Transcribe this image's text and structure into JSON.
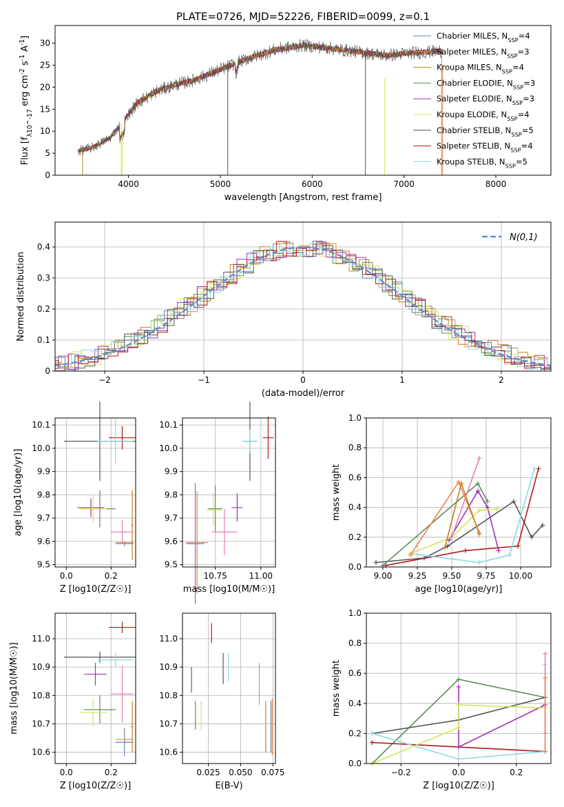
{
  "figure": {
    "title": "PLATE=0726, MJD=52226, FIBERID=0099, z=0.1"
  },
  "colors": {
    "chab_miles": "#6b7fb0",
    "salp_miles": "#e8864a",
    "krou_miles": "#c67f1a",
    "chab_elodie": "#5d8a5d",
    "salp_elodie": "#9e31b8",
    "krou_elodie": "#d4e35a",
    "chab_stelib": "#555555",
    "salp_stelib": "#b01717",
    "krou_stelib": "#8dd8e0",
    "pink": "#e77fb8",
    "gauss": "#5b8fd6"
  },
  "chart_data": [
    {
      "id": "spectrum",
      "type": "line",
      "xlabel": "wavelength [Angstrom, rest frame]",
      "ylabel": "Flux [f_λ10^-17 erg cm^-2 s^-1 A^-1]",
      "xlim": [
        3200,
        8600
      ],
      "ylim": [
        0,
        34
      ],
      "xticks": [
        4000,
        5000,
        6000,
        7000,
        8000
      ],
      "yticks": [
        0,
        5,
        10,
        15,
        20,
        25,
        30
      ],
      "legend_position": "right",
      "continuum": {
        "x": [
          3450,
          3600,
          3800,
          3950,
          4100,
          4300,
          4500,
          4700,
          5000,
          5300,
          5600,
          5900,
          6200,
          6500,
          6800,
          7100,
          7400
        ],
        "y": [
          5.5,
          6.2,
          8.5,
          12.5,
          16.5,
          19.0,
          20.5,
          21.5,
          24.0,
          26.5,
          28.5,
          29.5,
          28.8,
          28.0,
          27.2,
          27.8,
          28.2
        ]
      },
      "series": [
        {
          "name": "Chabrier MILES, N_SSP=4",
          "color_key": "chab_miles"
        },
        {
          "name": "Salpeter MILES, N_SSP=3",
          "color_key": "salp_miles"
        },
        {
          "name": "Kroupa MILES, N_SSP=4",
          "color_key": "krou_miles"
        },
        {
          "name": "Chabrier ELODIE, N_SSP=3",
          "color_key": "chab_elodie"
        },
        {
          "name": "Salpeter ELODIE, N_SSP=3",
          "color_key": "salp_elodie"
        },
        {
          "name": "Kroupa ELODIE, N_SSP=4",
          "color_key": "krou_elodie"
        },
        {
          "name": "Chabrier STELIB, N_SSP=5",
          "color_key": "chab_stelib"
        },
        {
          "name": "Salpeter STELIB, N_SSP=4",
          "color_key": "salp_stelib"
        },
        {
          "name": "Kroupa STELIB, N_SSP=5",
          "color_key": "krou_stelib"
        }
      ]
    },
    {
      "id": "residuals",
      "type": "line",
      "xlabel": "(data-model)/error",
      "ylabel": "Normed distribution",
      "xlim": [
        -2.5,
        2.5
      ],
      "ylim": [
        0,
        0.48
      ],
      "xticks": [
        -2,
        -1,
        0,
        1,
        2
      ],
      "yticks": [
        0.0,
        0.1,
        0.2,
        0.3,
        0.4
      ],
      "grid": true,
      "legend_position": "top-right",
      "gauss_label": "N(0,1)"
    },
    {
      "id": "age_vs_Z",
      "type": "scatter",
      "xlabel": "Z [log10(Z/Z☉)]",
      "ylabel": "age  [log10(age/yr)]",
      "xlim": [
        -0.05,
        0.31
      ],
      "ylim": [
        9.49,
        10.13
      ],
      "xticks": [
        0.0,
        0.2
      ],
      "yticks": [
        9.5,
        9.6,
        9.7,
        9.8,
        9.9,
        10.0,
        10.1
      ],
      "grid": true,
      "points": [
        {
          "color_key": "chab_miles",
          "x": 0.26,
          "xerr": 0.04,
          "y": 9.59,
          "yerr": 0.01
        },
        {
          "color_key": "salp_miles",
          "x": 0.26,
          "xerr": 0.04,
          "y": 9.595,
          "yerr": 0.005
        },
        {
          "color_key": "krou_miles",
          "x": 0.295,
          "xerr": 0.005,
          "y": 9.67,
          "yerr": 0.15
        },
        {
          "color_key": "chab_elodie",
          "x": 0.15,
          "xerr": 0.07,
          "y": 9.74,
          "yerr": 0.08
        },
        {
          "color_key": "salp_elodie",
          "x": 0.11,
          "xerr": 0.06,
          "y": 9.745,
          "yerr": 0.04
        },
        {
          "color_key": "krou_elodie",
          "x": 0.12,
          "xerr": 0.06,
          "y": 9.74,
          "yerr": 0.06
        },
        {
          "color_key": "chab_stelib",
          "x": 0.15,
          "xerr": 0.16,
          "y": 10.03,
          "yerr": 0.17
        },
        {
          "color_key": "salp_stelib",
          "x": 0.25,
          "xerr": 0.06,
          "y": 10.045,
          "yerr": 0.05
        },
        {
          "color_key": "krou_stelib",
          "x": 0.22,
          "xerr": 0.08,
          "y": 10.03,
          "yerr": 0.1
        },
        {
          "color_key": "pink",
          "x": 0.25,
          "xerr": 0.05,
          "y": 9.64,
          "yerr": 0.05
        }
      ]
    },
    {
      "id": "age_vs_mass",
      "type": "scatter",
      "xlabel": "mass [log10(M/M☉)]",
      "ylabel": "",
      "xlim": [
        10.57,
        11.08
      ],
      "ylim": [
        9.49,
        10.13
      ],
      "xticks": [
        10.75,
        11.0
      ],
      "yticks": [
        9.5,
        9.6,
        9.7,
        9.8,
        9.9,
        10.0,
        10.1
      ],
      "grid": true,
      "points": [
        {
          "color_key": "chab_miles",
          "x": 10.64,
          "xerr": 0.05,
          "y": 9.59,
          "yerr": 0.26
        },
        {
          "color_key": "salp_miles",
          "x": 10.65,
          "xerr": 0.06,
          "y": 9.595,
          "yerr": 0.22
        },
        {
          "color_key": "chab_elodie",
          "x": 10.75,
          "xerr": 0.04,
          "y": 9.74,
          "yerr": 0.1
        },
        {
          "color_key": "salp_elodie",
          "x": 10.87,
          "xerr": 0.03,
          "y": 9.745,
          "yerr": 0.06
        },
        {
          "color_key": "krou_elodie",
          "x": 10.74,
          "xerr": 0.04,
          "y": 9.735,
          "yerr": 0.07
        },
        {
          "color_key": "chab_stelib",
          "x": 10.94,
          "xerr": 0.04,
          "y": 10.03,
          "yerr": 0.17
        },
        {
          "color_key": "salp_stelib",
          "x": 11.04,
          "xerr": 0.03,
          "y": 10.045,
          "yerr": 0.09
        },
        {
          "color_key": "krou_stelib",
          "x": 10.94,
          "xerr": 0.04,
          "y": 10.03,
          "yerr": 0.05
        },
        {
          "color_key": "pink",
          "x": 10.8,
          "xerr": 0.07,
          "y": 9.64,
          "yerr": 0.1
        }
      ]
    },
    {
      "id": "mass_weight_vs_age",
      "type": "line",
      "xlabel": "age  [log10(age/yr)]",
      "ylabel": "mass weight",
      "xlim": [
        8.88,
        10.22
      ],
      "ylim": [
        0.0,
        1.0
      ],
      "xticks": [
        9.0,
        9.25,
        9.5,
        9.75,
        10.0
      ],
      "yticks": [
        0.0,
        0.2,
        0.4,
        0.6,
        0.8,
        1.0
      ],
      "grid": true,
      "series": [
        {
          "color_key": "chab_stelib",
          "x": [
            8.95,
            9.3,
            9.47,
            9.95,
            10.08,
            10.16
          ],
          "y": [
            0.03,
            0.06,
            0.14,
            0.44,
            0.2,
            0.28
          ]
        },
        {
          "color_key": "salp_stelib",
          "x": [
            9.02,
            9.6,
            9.98,
            10.13
          ],
          "y": [
            0.01,
            0.11,
            0.14,
            0.66
          ]
        },
        {
          "color_key": "krou_stelib",
          "x": [
            9.2,
            9.7,
            9.92,
            10.1
          ],
          "y": [
            0.09,
            0.03,
            0.08,
            0.66
          ]
        },
        {
          "color_key": "chab_elodie",
          "x": [
            9.0,
            9.69,
            9.76
          ],
          "y": [
            0.01,
            0.56,
            0.44
          ]
        },
        {
          "color_key": "salp_elodie",
          "x": [
            9.48,
            9.69,
            9.76,
            9.84
          ],
          "y": [
            0.18,
            0.51,
            0.4,
            0.11
          ]
        },
        {
          "color_key": "krou_elodie",
          "x": [
            9.2,
            9.5,
            9.7,
            9.83
          ],
          "y": [
            0.09,
            0.2,
            0.38,
            0.39
          ]
        },
        {
          "color_key": "salp_miles",
          "x": [
            9.2,
            9.55,
            9.7
          ],
          "y": [
            0.08,
            0.57,
            0.23
          ]
        },
        {
          "color_key": "krou_miles",
          "x": [
            9.45,
            9.57,
            9.7
          ],
          "y": [
            0.13,
            0.56,
            0.22
          ]
        },
        {
          "color_key": "pink",
          "x": [
            9.5,
            9.7
          ],
          "y": [
            0.2,
            0.73
          ]
        }
      ]
    },
    {
      "id": "mass_vs_Z",
      "type": "scatter",
      "xlabel": "Z [log10(Z/Z☉)]",
      "ylabel": "mass [log10(M/M☉)]",
      "xlim": [
        -0.05,
        0.31
      ],
      "ylim": [
        10.56,
        11.09
      ],
      "xticks": [
        0.0,
        0.2
      ],
      "yticks": [
        10.6,
        10.7,
        10.8,
        10.9,
        11.0
      ],
      "grid": true,
      "points": [
        {
          "color_key": "chab_miles",
          "x": 0.26,
          "xerr": 0.04,
          "y": 10.635,
          "yerr": 0.05
        },
        {
          "color_key": "salp_miles",
          "x": 0.26,
          "xerr": 0.04,
          "y": 10.645,
          "yerr": 0.005
        },
        {
          "color_key": "krou_miles",
          "x": 0.295,
          "xerr": 0.005,
          "y": 10.69,
          "yerr": 0.09
        },
        {
          "color_key": "chab_elodie",
          "x": 0.15,
          "xerr": 0.07,
          "y": 10.75,
          "yerr": 0.05
        },
        {
          "color_key": "salp_elodie",
          "x": 0.13,
          "xerr": 0.05,
          "y": 10.875,
          "yerr": 0.04
        },
        {
          "color_key": "krou_elodie",
          "x": 0.12,
          "xerr": 0.06,
          "y": 10.74,
          "yerr": 0.05
        },
        {
          "color_key": "chab_stelib",
          "x": 0.15,
          "xerr": 0.16,
          "y": 10.935,
          "yerr": 0.02
        },
        {
          "color_key": "salp_stelib",
          "x": 0.25,
          "xerr": 0.06,
          "y": 11.04,
          "yerr": 0.02
        },
        {
          "color_key": "krou_stelib",
          "x": 0.22,
          "xerr": 0.08,
          "y": 10.925,
          "yerr": 0.025
        },
        {
          "color_key": "pink",
          "x": 0.25,
          "xerr": 0.05,
          "y": 10.805,
          "yerr": 0.1
        }
      ]
    },
    {
      "id": "mass_vs_EBV",
      "type": "scatter",
      "xlabel": "E(B-V)",
      "ylabel": "",
      "xlim": [
        0.005,
        0.077
      ],
      "ylim": [
        10.56,
        11.09
      ],
      "xticks": [
        0.025,
        0.05,
        0.075
      ],
      "yticks": [
        10.6,
        10.7,
        10.8,
        10.9,
        11.0
      ],
      "grid": true,
      "points": [
        {
          "color_key": "chab_miles",
          "x": 0.0735,
          "y": 10.69,
          "yerr": 0.09
        },
        {
          "color_key": "salp_miles",
          "x": 0.0745,
          "y": 10.69,
          "yerr": 0.1
        },
        {
          "color_key": "krou_miles",
          "x": 0.0695,
          "y": 10.69,
          "yerr": 0.09
        },
        {
          "color_key": "chab_elodie",
          "x": 0.015,
          "y": 10.73,
          "yerr": 0.05
        },
        {
          "color_key": "salp_elodie",
          "x": 0.012,
          "y": 10.855,
          "yerr": 0.045
        },
        {
          "color_key": "krou_elodie",
          "x": 0.0195,
          "y": 10.73,
          "yerr": 0.05
        },
        {
          "color_key": "chab_stelib",
          "x": 0.0365,
          "y": 10.895,
          "yerr": 0.055
        },
        {
          "color_key": "salp_stelib",
          "x": 0.0275,
          "y": 11.02,
          "yerr": 0.035
        },
        {
          "color_key": "krou_stelib",
          "x": 0.0405,
          "y": 10.9,
          "yerr": 0.05
        },
        {
          "color_key": "pink",
          "x": 0.0645,
          "y": 10.84,
          "yerr": 0.075
        }
      ]
    },
    {
      "id": "mass_weight_vs_Z",
      "type": "line",
      "xlabel": "Z [log10(Z/Z☉)]",
      "ylabel": "mass weight",
      "xlim": [
        -0.32,
        0.32
      ],
      "ylim": [
        0.0,
        1.0
      ],
      "xticks": [
        -0.2,
        0.0,
        0.2
      ],
      "yticks": [
        0.0,
        0.2,
        0.4,
        0.6,
        0.8,
        1.0
      ],
      "grid": true,
      "series": [
        {
          "color_key": "chab_elodie",
          "x": [
            -0.3,
            0.0,
            0.3
          ],
          "y": [
            0.0,
            0.56,
            0.44
          ]
        },
        {
          "color_key": "chab_stelib",
          "x": [
            -0.3,
            0.0,
            0.3
          ],
          "y": [
            0.2,
            0.29,
            0.44
          ]
        },
        {
          "color_key": "salp_stelib",
          "x": [
            -0.3,
            0.3
          ],
          "y": [
            0.14,
            0.08
          ]
        },
        {
          "color_key": "krou_stelib",
          "x": [
            -0.3,
            0.0,
            0.3,
            0.3
          ],
          "y": [
            0.2,
            0.03,
            0.08,
            0.66
          ]
        },
        {
          "color_key": "salp_elodie",
          "x": [
            0.0,
            0.0,
            0.3
          ],
          "y": [
            0.51,
            0.11,
            0.39
          ]
        },
        {
          "color_key": "krou_elodie",
          "x": [
            -0.3,
            0.0,
            0.0,
            0.3
          ],
          "y": [
            0.0,
            0.24,
            0.39,
            0.37
          ]
        },
        {
          "color_key": "pink",
          "x": [
            0.3,
            0.3
          ],
          "y": [
            0.73,
            0.2
          ]
        },
        {
          "color_key": "salp_miles",
          "x": [
            0.3,
            0.3
          ],
          "y": [
            0.57,
            0.08
          ]
        }
      ]
    }
  ]
}
